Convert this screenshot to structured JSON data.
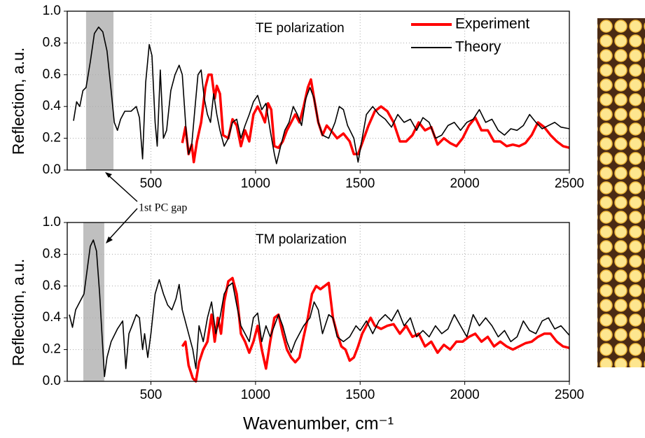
{
  "chart_data": [
    {
      "type": "line",
      "label": "TE polarization",
      "ylabel": "Reflection, a.u.",
      "annotation": "1st PC gap",
      "xlim": [
        100,
        2500
      ],
      "xticks": [
        500,
        1000,
        1500,
        2000,
        2500
      ],
      "ylim": [
        0,
        1
      ],
      "yticks": [
        {
          "value": 0,
          "label": "0.0"
        },
        0.2,
        0.4,
        0.6,
        0.8,
        {
          "value": 1,
          "label": "1.0"
        }
      ],
      "grid": true,
      "legend": "upper right",
      "shaded_region": [
        190,
        321
      ],
      "shade_color": "#bfbfbf",
      "series": [
        {
          "name": "Experiment",
          "color": "#ff0000",
          "x": [
            650,
            665,
            680,
            695,
            705,
            720,
            740,
            760,
            775,
            790,
            805,
            815,
            830,
            845,
            870,
            890,
            910,
            930,
            950,
            970,
            990,
            1010,
            1030,
            1045,
            1060,
            1075,
            1090,
            1110,
            1130,
            1150,
            1170,
            1190,
            1210,
            1230,
            1250,
            1265,
            1280,
            1300,
            1320,
            1340,
            1360,
            1390,
            1420,
            1450,
            1470,
            1490,
            1510,
            1540,
            1570,
            1600,
            1630,
            1660,
            1690,
            1720,
            1750,
            1780,
            1810,
            1840,
            1870,
            1900,
            1930,
            1960,
            1990,
            2020,
            2050,
            2080,
            2110,
            2140,
            2170,
            2200,
            2230,
            2260,
            2290,
            2320,
            2350,
            2380,
            2410,
            2440,
            2470,
            2500
          ],
          "values": [
            0.17,
            0.27,
            0.1,
            0.16,
            0.05,
            0.18,
            0.3,
            0.52,
            0.6,
            0.6,
            0.45,
            0.53,
            0.48,
            0.22,
            0.2,
            0.32,
            0.28,
            0.15,
            0.25,
            0.18,
            0.35,
            0.4,
            0.35,
            0.3,
            0.42,
            0.38,
            0.15,
            0.14,
            0.18,
            0.25,
            0.3,
            0.35,
            0.3,
            0.4,
            0.52,
            0.57,
            0.45,
            0.3,
            0.22,
            0.28,
            0.25,
            0.2,
            0.23,
            0.18,
            0.1,
            0.1,
            0.17,
            0.28,
            0.37,
            0.4,
            0.37,
            0.3,
            0.18,
            0.18,
            0.22,
            0.3,
            0.25,
            0.27,
            0.16,
            0.2,
            0.17,
            0.15,
            0.2,
            0.28,
            0.33,
            0.25,
            0.25,
            0.18,
            0.18,
            0.15,
            0.16,
            0.15,
            0.17,
            0.22,
            0.3,
            0.27,
            0.22,
            0.18,
            0.15,
            0.14
          ]
        },
        {
          "name": "Theory",
          "color": "#000000",
          "x": [
            130,
            145,
            160,
            175,
            190,
            210,
            230,
            250,
            270,
            290,
            310,
            325,
            340,
            355,
            375,
            405,
            430,
            445,
            460,
            475,
            492,
            505,
            520,
            530,
            545,
            560,
            575,
            595,
            615,
            635,
            650,
            668,
            680,
            695,
            710,
            725,
            740,
            755,
            770,
            785,
            800,
            815,
            830,
            850,
            870,
            890,
            910,
            930,
            950,
            970,
            990,
            1010,
            1030,
            1050,
            1070,
            1090,
            1100,
            1120,
            1140,
            1160,
            1180,
            1200,
            1220,
            1240,
            1260,
            1280,
            1300,
            1320,
            1350,
            1380,
            1400,
            1420,
            1440,
            1470,
            1490,
            1510,
            1530,
            1560,
            1590,
            1620,
            1650,
            1680,
            1710,
            1740,
            1770,
            1800,
            1830,
            1860,
            1890,
            1920,
            1950,
            1980,
            2010,
            2040,
            2070,
            2100,
            2130,
            2160,
            2190,
            2220,
            2250,
            2280,
            2310,
            2340,
            2370,
            2400,
            2430,
            2460,
            2500
          ],
          "values": [
            0.31,
            0.43,
            0.4,
            0.5,
            0.52,
            0.68,
            0.86,
            0.9,
            0.87,
            0.75,
            0.5,
            0.3,
            0.25,
            0.32,
            0.37,
            0.37,
            0.4,
            0.33,
            0.07,
            0.55,
            0.79,
            0.72,
            0.3,
            0.15,
            0.63,
            0.2,
            0.25,
            0.5,
            0.6,
            0.66,
            0.6,
            0.25,
            0.1,
            0.16,
            0.38,
            0.6,
            0.63,
            0.45,
            0.35,
            0.3,
            0.48,
            0.35,
            0.25,
            0.15,
            0.2,
            0.3,
            0.32,
            0.2,
            0.28,
            0.35,
            0.43,
            0.47,
            0.38,
            0.42,
            0.25,
            0.1,
            0.04,
            0.15,
            0.25,
            0.3,
            0.4,
            0.35,
            0.28,
            0.45,
            0.52,
            0.45,
            0.3,
            0.22,
            0.2,
            0.3,
            0.4,
            0.38,
            0.28,
            0.2,
            0.05,
            0.2,
            0.35,
            0.4,
            0.35,
            0.32,
            0.27,
            0.35,
            0.3,
            0.32,
            0.25,
            0.33,
            0.3,
            0.2,
            0.22,
            0.28,
            0.3,
            0.25,
            0.3,
            0.32,
            0.38,
            0.3,
            0.32,
            0.25,
            0.22,
            0.26,
            0.25,
            0.28,
            0.35,
            0.3,
            0.26,
            0.28,
            0.3,
            0.27,
            0.26
          ]
        }
      ]
    },
    {
      "type": "line",
      "label": "TM polarization",
      "ylabel": "Reflection, a.u.",
      "xlabel": "Wavenumber, cm⁻¹",
      "xlim": [
        100,
        2500
      ],
      "xticks": [
        500,
        1000,
        1500,
        2000,
        2500
      ],
      "ylim": [
        0,
        1
      ],
      "yticks": [
        {
          "value": 0,
          "label": "0.0"
        },
        0.2,
        0.4,
        0.6,
        0.8,
        {
          "value": 1,
          "label": "1.0"
        }
      ],
      "grid": true,
      "shaded_region": [
        177,
        277
      ],
      "shade_color": "#bfbfbf",
      "series": [
        {
          "color": "#ff0000",
          "x": [
            650,
            665,
            680,
            700,
            715,
            730,
            750,
            770,
            790,
            805,
            820,
            835,
            850,
            870,
            890,
            910,
            930,
            950,
            970,
            990,
            1010,
            1030,
            1050,
            1070,
            1090,
            1110,
            1130,
            1150,
            1170,
            1190,
            1210,
            1230,
            1250,
            1270,
            1290,
            1310,
            1330,
            1350,
            1370,
            1390,
            1410,
            1430,
            1450,
            1470,
            1490,
            1510,
            1530,
            1550,
            1570,
            1600,
            1630,
            1660,
            1690,
            1720,
            1750,
            1780,
            1810,
            1840,
            1870,
            1900,
            1930,
            1960,
            1990,
            2020,
            2050,
            2080,
            2110,
            2140,
            2170,
            2200,
            2230,
            2260,
            2290,
            2320,
            2350,
            2380,
            2410,
            2440,
            2470,
            2500
          ],
          "values": [
            0.22,
            0.25,
            0.1,
            0.02,
            0.0,
            0.12,
            0.2,
            0.25,
            0.42,
            0.25,
            0.4,
            0.3,
            0.5,
            0.63,
            0.65,
            0.55,
            0.3,
            0.25,
            0.18,
            0.25,
            0.35,
            0.2,
            0.08,
            0.25,
            0.4,
            0.42,
            0.3,
            0.2,
            0.15,
            0.12,
            0.15,
            0.28,
            0.4,
            0.55,
            0.6,
            0.58,
            0.6,
            0.62,
            0.4,
            0.3,
            0.22,
            0.2,
            0.13,
            0.15,
            0.22,
            0.3,
            0.35,
            0.4,
            0.35,
            0.33,
            0.35,
            0.36,
            0.3,
            0.35,
            0.28,
            0.3,
            0.22,
            0.25,
            0.18,
            0.23,
            0.2,
            0.25,
            0.25,
            0.28,
            0.3,
            0.25,
            0.28,
            0.22,
            0.25,
            0.22,
            0.2,
            0.22,
            0.24,
            0.25,
            0.28,
            0.3,
            0.3,
            0.25,
            0.22,
            0.21
          ]
        },
        {
          "color": "#000000",
          "x": [
            110,
            125,
            140,
            160,
            180,
            195,
            210,
            225,
            240,
            255,
            268,
            278,
            290,
            310,
            340,
            365,
            380,
            395,
            410,
            430,
            445,
            460,
            470,
            485,
            500,
            520,
            540,
            560,
            580,
            600,
            620,
            635,
            650,
            670,
            690,
            700,
            715,
            730,
            750,
            770,
            790,
            810,
            830,
            850,
            870,
            890,
            910,
            930,
            950,
            970,
            990,
            1010,
            1030,
            1050,
            1070,
            1090,
            1110,
            1130,
            1150,
            1170,
            1190,
            1210,
            1230,
            1260,
            1280,
            1300,
            1320,
            1350,
            1370,
            1390,
            1420,
            1450,
            1480,
            1500,
            1530,
            1560,
            1590,
            1620,
            1650,
            1680,
            1710,
            1740,
            1770,
            1800,
            1830,
            1860,
            1890,
            1920,
            1950,
            1980,
            2010,
            2040,
            2070,
            2100,
            2130,
            2160,
            2190,
            2220,
            2250,
            2280,
            2310,
            2340,
            2370,
            2400,
            2430,
            2460,
            2500
          ],
          "values": [
            0.42,
            0.34,
            0.45,
            0.5,
            0.55,
            0.7,
            0.85,
            0.89,
            0.82,
            0.55,
            0.25,
            0.03,
            0.15,
            0.25,
            0.33,
            0.38,
            0.08,
            0.3,
            0.35,
            0.42,
            0.4,
            0.2,
            0.3,
            0.15,
            0.3,
            0.55,
            0.64,
            0.55,
            0.48,
            0.45,
            0.52,
            0.61,
            0.45,
            0.35,
            0.25,
            0.2,
            0.08,
            0.35,
            0.25,
            0.4,
            0.5,
            0.3,
            0.4,
            0.55,
            0.6,
            0.62,
            0.48,
            0.35,
            0.3,
            0.25,
            0.4,
            0.43,
            0.25,
            0.35,
            0.28,
            0.35,
            0.42,
            0.35,
            0.25,
            0.18,
            0.25,
            0.3,
            0.35,
            0.4,
            0.5,
            0.45,
            0.3,
            0.42,
            0.4,
            0.28,
            0.25,
            0.28,
            0.35,
            0.32,
            0.38,
            0.3,
            0.38,
            0.42,
            0.38,
            0.45,
            0.35,
            0.4,
            0.28,
            0.32,
            0.28,
            0.35,
            0.3,
            0.33,
            0.42,
            0.35,
            0.28,
            0.42,
            0.35,
            0.4,
            0.35,
            0.28,
            0.32,
            0.25,
            0.28,
            0.38,
            0.32,
            0.3,
            0.38,
            0.4,
            0.33,
            0.35,
            0.29
          ]
        }
      ]
    }
  ]
}
